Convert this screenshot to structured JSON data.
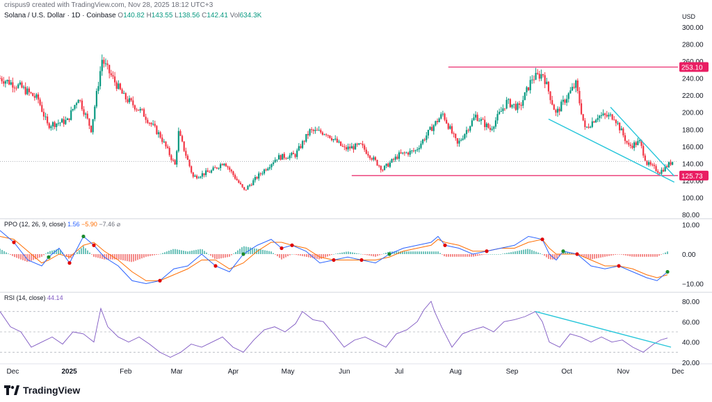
{
  "header": {
    "credit": "crispus9 created with TradingView.com, Nov 28, 2025 18:12 UTC+3",
    "symbol": "Solana / U.S. Dollar · 1D · Coinbase",
    "o_label": "O",
    "o_value": "140.82",
    "h_label": "H",
    "h_value": "143.55",
    "l_label": "L",
    "l_value": "138.56",
    "c_label": "C",
    "c_value": "142.41",
    "vol_label": "Vol",
    "vol_value": "634.3K"
  },
  "footer": {
    "brand": "TradingView"
  },
  "colors": {
    "up": "#089981",
    "down": "#f23645",
    "level": "#e91e63",
    "trend": "#26c6da",
    "ppo": "#2962ff",
    "signal": "#ff6d00",
    "rsi": "#7e57c2"
  },
  "chart_data": [
    {
      "type": "candlestick",
      "title": "Solana / U.S. Dollar · 1D · Coinbase",
      "ylabel": "USD",
      "ylim": [
        80,
        300
      ],
      "yticks": [
        "300.00",
        "280.00",
        "260.00",
        "240.00",
        "220.00",
        "200.00",
        "180.00",
        "160.00",
        "140.00",
        "120.00",
        "100.00",
        "80.00"
      ],
      "xticks": [
        "Dec",
        "2025",
        "Feb",
        "Mar",
        "Apr",
        "May",
        "Jun",
        "Jul",
        "Aug",
        "Sep",
        "Oct",
        "Nov",
        "Dec"
      ],
      "xrange": [
        "2024-11-24",
        "2025-12-01"
      ],
      "close_path": [
        [
          "2024-11-24",
          240
        ],
        [
          "2024-12-05",
          230
        ],
        [
          "2024-12-15",
          215
        ],
        [
          "2024-12-20",
          185
        ],
        [
          "2024-12-31",
          190
        ],
        [
          "2025-01-06",
          218
        ],
        [
          "2025-01-13",
          180
        ],
        [
          "2025-01-19",
          262
        ],
        [
          "2025-01-22",
          250
        ],
        [
          "2025-01-31",
          218
        ],
        [
          "2025-02-10",
          200
        ],
        [
          "2025-02-20",
          172
        ],
        [
          "2025-02-28",
          138
        ],
        [
          "2025-03-02",
          176
        ],
        [
          "2025-03-10",
          124
        ],
        [
          "2025-03-20",
          131
        ],
        [
          "2025-03-27",
          142
        ],
        [
          "2025-04-07",
          108
        ],
        [
          "2025-04-15",
          126
        ],
        [
          "2025-04-25",
          147
        ],
        [
          "2025-05-05",
          150
        ],
        [
          "2025-05-13",
          178
        ],
        [
          "2025-05-22",
          176
        ],
        [
          "2025-06-01",
          157
        ],
        [
          "2025-06-10",
          161
        ],
        [
          "2025-06-22",
          133
        ],
        [
          "2025-07-01",
          150
        ],
        [
          "2025-07-10",
          155
        ],
        [
          "2025-07-20",
          185
        ],
        [
          "2025-07-25",
          198
        ],
        [
          "2025-08-02",
          162
        ],
        [
          "2025-08-12",
          196
        ],
        [
          "2025-08-20",
          180
        ],
        [
          "2025-08-29",
          212
        ],
        [
          "2025-09-05",
          205
        ],
        [
          "2025-09-12",
          240
        ],
        [
          "2025-09-18",
          245
        ],
        [
          "2025-09-25",
          198
        ],
        [
          "2025-10-01",
          218
        ],
        [
          "2025-10-06",
          233
        ],
        [
          "2025-10-11",
          180
        ],
        [
          "2025-10-18",
          196
        ],
        [
          "2025-10-27",
          195
        ],
        [
          "2025-11-04",
          160
        ],
        [
          "2025-11-10",
          165
        ],
        [
          "2025-11-14",
          140
        ],
        [
          "2025-11-21",
          130
        ],
        [
          "2025-11-28",
          142.41
        ]
      ],
      "levels": [
        {
          "value": 253.1,
          "label": "253.10"
        },
        {
          "value": 125.73,
          "label": "125.73"
        }
      ],
      "last_price": 142.41,
      "wedge_lines": [
        [
          [
            "2025-09-21",
            192
          ],
          [
            "2025-11-29",
            118
          ]
        ],
        [
          [
            "2025-10-25",
            206
          ],
          [
            "2025-11-29",
            125
          ]
        ]
      ]
    },
    {
      "type": "line",
      "title": "PPO (12, 26, 9, close)",
      "legend": [
        "1.56",
        "−5.90",
        "−7.46",
        "⌀"
      ],
      "ylim": [
        -12,
        12
      ],
      "yticks": [
        "10.00",
        "0.00",
        "−10.00"
      ],
      "series": [
        {
          "name": "PPO",
          "points": [
            [
              0,
              8
            ],
            [
              20,
              4
            ],
            [
              40,
              -2
            ],
            [
              60,
              -4
            ],
            [
              70,
              -1
            ],
            [
              85,
              2
            ],
            [
              100,
              -3
            ],
            [
              120,
              6
            ],
            [
              135,
              3
            ],
            [
              150,
              -1
            ],
            [
              170,
              -4
            ],
            [
              190,
              -9
            ],
            [
              210,
              -10
            ],
            [
              230,
              -9
            ],
            [
              250,
              -5
            ],
            [
              270,
              -4
            ],
            [
              290,
              0
            ],
            [
              310,
              -4
            ],
            [
              330,
              -6
            ],
            [
              350,
              0
            ],
            [
              370,
              3
            ],
            [
              390,
              5
            ],
            [
              405,
              2
            ],
            [
              420,
              3
            ],
            [
              440,
              1
            ],
            [
              460,
              -3
            ],
            [
              480,
              -2
            ],
            [
              500,
              -1
            ],
            [
              520,
              -2
            ],
            [
              540,
              -3
            ],
            [
              560,
              0
            ],
            [
              580,
              2
            ],
            [
              600,
              3
            ],
            [
              620,
              4
            ],
            [
              630,
              6
            ],
            [
              640,
              3
            ],
            [
              660,
              2
            ],
            [
              680,
              0
            ],
            [
              700,
              1
            ],
            [
              720,
              2
            ],
            [
              740,
              3
            ],
            [
              760,
              6
            ],
            [
              780,
              5
            ],
            [
              790,
              0
            ],
            [
              800,
              -2
            ],
            [
              810,
              1
            ],
            [
              830,
              0
            ],
            [
              850,
              -4
            ],
            [
              870,
              -5
            ],
            [
              890,
              -4
            ],
            [
              910,
              -6
            ],
            [
              930,
              -8
            ],
            [
              945,
              -9
            ],
            [
              960,
              -6
            ]
          ]
        },
        {
          "name": "Signal",
          "points": [
            [
              0,
              6
            ],
            [
              20,
              5
            ],
            [
              40,
              1
            ],
            [
              60,
              -3
            ],
            [
              70,
              -2
            ],
            [
              85,
              0
            ],
            [
              100,
              -1
            ],
            [
              120,
              3
            ],
            [
              135,
              4
            ],
            [
              150,
              1
            ],
            [
              170,
              -2
            ],
            [
              190,
              -6
            ],
            [
              210,
              -9
            ],
            [
              230,
              -9
            ],
            [
              250,
              -7
            ],
            [
              270,
              -5
            ],
            [
              290,
              -2
            ],
            [
              310,
              -2
            ],
            [
              330,
              -5
            ],
            [
              350,
              -3
            ],
            [
              370,
              1
            ],
            [
              390,
              4
            ],
            [
              405,
              4
            ],
            [
              420,
              3
            ],
            [
              440,
              2
            ],
            [
              460,
              -1
            ],
            [
              480,
              -2
            ],
            [
              500,
              -2
            ],
            [
              520,
              -2
            ],
            [
              540,
              -2
            ],
            [
              560,
              -1
            ],
            [
              580,
              1
            ],
            [
              600,
              2
            ],
            [
              620,
              3
            ],
            [
              630,
              5
            ],
            [
              640,
              4
            ],
            [
              660,
              3
            ],
            [
              680,
              1
            ],
            [
              700,
              1
            ],
            [
              720,
              2
            ],
            [
              740,
              2
            ],
            [
              760,
              4
            ],
            [
              780,
              5
            ],
            [
              790,
              2
            ],
            [
              800,
              0
            ],
            [
              810,
              0
            ],
            [
              830,
              0
            ],
            [
              850,
              -2
            ],
            [
              870,
              -4
            ],
            [
              890,
              -4
            ],
            [
              910,
              -5
            ],
            [
              930,
              -7
            ],
            [
              945,
              -8
            ],
            [
              960,
              -7
            ]
          ]
        }
      ]
    },
    {
      "type": "line",
      "title": "RSI (14, close)",
      "legend": [
        "44.14"
      ],
      "ylim": [
        20,
        85
      ],
      "yticks": [
        "80.00",
        "60.00",
        "40.00",
        "20.00"
      ],
      "bands": [
        70,
        50,
        30
      ],
      "series": [
        {
          "name": "RSI",
          "points": [
            [
              0,
              70
            ],
            [
              15,
              55
            ],
            [
              30,
              50
            ],
            [
              45,
              35
            ],
            [
              60,
              40
            ],
            [
              75,
              45
            ],
            [
              90,
              38
            ],
            [
              105,
              50
            ],
            [
              120,
              48
            ],
            [
              135,
              40
            ],
            [
              145,
              73
            ],
            [
              155,
              55
            ],
            [
              170,
              45
            ],
            [
              185,
              40
            ],
            [
              200,
              45
            ],
            [
              215,
              38
            ],
            [
              230,
              30
            ],
            [
              245,
              25
            ],
            [
              260,
              30
            ],
            [
              275,
              38
            ],
            [
              290,
              35
            ],
            [
              305,
              40
            ],
            [
              320,
              45
            ],
            [
              335,
              35
            ],
            [
              350,
              30
            ],
            [
              365,
              42
            ],
            [
              380,
              52
            ],
            [
              395,
              55
            ],
            [
              410,
              50
            ],
            [
              425,
              58
            ],
            [
              435,
              70
            ],
            [
              450,
              62
            ],
            [
              465,
              60
            ],
            [
              480,
              48
            ],
            [
              495,
              35
            ],
            [
              510,
              42
            ],
            [
              525,
              45
            ],
            [
              540,
              40
            ],
            [
              555,
              35
            ],
            [
              570,
              48
            ],
            [
              585,
              52
            ],
            [
              600,
              60
            ],
            [
              610,
              72
            ],
            [
              620,
              80
            ],
            [
              625,
              70
            ],
            [
              635,
              55
            ],
            [
              650,
              35
            ],
            [
              665,
              48
            ],
            [
              680,
              52
            ],
            [
              695,
              55
            ],
            [
              710,
              50
            ],
            [
              725,
              60
            ],
            [
              740,
              62
            ],
            [
              755,
              65
            ],
            [
              770,
              70
            ],
            [
              780,
              60
            ],
            [
              790,
              40
            ],
            [
              805,
              35
            ],
            [
              820,
              48
            ],
            [
              835,
              45
            ],
            [
              850,
              40
            ],
            [
              865,
              45
            ],
            [
              880,
              40
            ],
            [
              895,
              42
            ],
            [
              910,
              35
            ],
            [
              925,
              30
            ],
            [
              940,
              38
            ],
            [
              950,
              42
            ],
            [
              960,
              44
            ]
          ]
        }
      ],
      "trendline": [
        [
          770,
          70
        ],
        [
          965,
          35
        ]
      ]
    }
  ]
}
